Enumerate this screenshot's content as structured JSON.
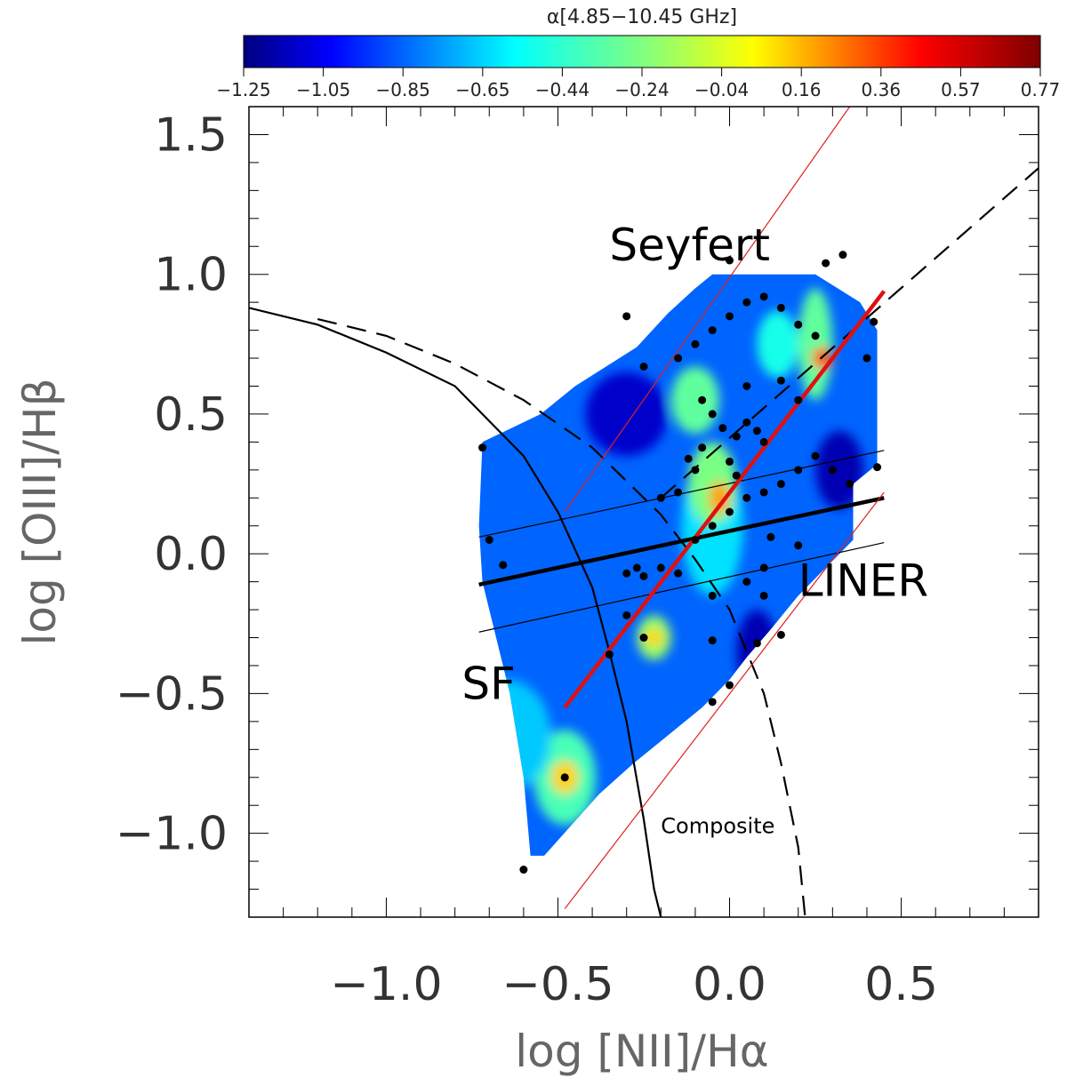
{
  "chart_data": {
    "type": "scatter",
    "xlabel": "log [NII]/Hα",
    "ylabel": "log [OIII]/Hβ",
    "xlim": [
      -1.4,
      0.9
    ],
    "ylim": [
      -1.3,
      1.6
    ],
    "xticks": [
      {
        "value": -1.0,
        "label": "−1.0"
      },
      {
        "value": -0.5,
        "label": "−0.5"
      },
      {
        "value": 0.0,
        "label": "0.0"
      },
      {
        "value": 0.5,
        "label": "0.5"
      }
    ],
    "yticks": [
      {
        "value": 1.5,
        "label": "1.5"
      },
      {
        "value": 1.0,
        "label": "1.0"
      },
      {
        "value": 0.5,
        "label": "0.5"
      },
      {
        "value": 0.0,
        "label": "0.0"
      },
      {
        "value": -0.5,
        "label": "−0.5"
      },
      {
        "value": -1.0,
        "label": "−1.0"
      }
    ],
    "colorbar": {
      "title": "α[4.85−10.45 GHz]",
      "min": -1.25,
      "max": 0.77,
      "ticks": [
        "−1.25",
        "−1.05",
        "−0.85",
        "−0.65",
        "−0.44",
        "−0.24",
        "−0.04",
        "0.16",
        "0.36",
        "0.57",
        "0.77"
      ]
    },
    "region_labels": [
      {
        "text": "Seyfert",
        "x": -0.35,
        "y": 1.05
      },
      {
        "text": "LINER",
        "x": 0.2,
        "y": -0.15
      },
      {
        "text": "SF",
        "x": -0.78,
        "y": -0.52
      },
      {
        "text": "Composite",
        "x": -0.2,
        "y": -1.0
      }
    ],
    "contour_region": [
      [
        -0.72,
        0.4
      ],
      [
        -0.55,
        0.5
      ],
      [
        -0.45,
        0.6
      ],
      [
        -0.27,
        0.74
      ],
      [
        -0.18,
        0.86
      ],
      [
        -0.1,
        0.95
      ],
      [
        -0.05,
        1.0
      ],
      [
        0.25,
        1.0
      ],
      [
        0.38,
        0.9
      ],
      [
        0.43,
        0.8
      ],
      [
        0.43,
        0.32
      ],
      [
        0.36,
        0.25
      ],
      [
        0.36,
        0.05
      ],
      [
        0.28,
        -0.05
      ],
      [
        0.2,
        -0.15
      ],
      [
        0.12,
        -0.27
      ],
      [
        0.05,
        -0.37
      ],
      [
        0.0,
        -0.45
      ],
      [
        -0.08,
        -0.55
      ],
      [
        -0.18,
        -0.65
      ],
      [
        -0.28,
        -0.75
      ],
      [
        -0.38,
        -0.86
      ],
      [
        -0.46,
        -0.97
      ],
      [
        -0.54,
        -1.08
      ],
      [
        -0.58,
        -1.08
      ],
      [
        -0.6,
        -0.8
      ],
      [
        -0.64,
        -0.5
      ],
      [
        -0.68,
        -0.3
      ],
      [
        -0.72,
        -0.1
      ],
      [
        -0.73,
        0.1
      ]
    ],
    "contour_blobs": [
      {
        "center": [
          -0.48,
          -0.8
        ],
        "r": [
          0.09,
          0.17
        ],
        "value": -0.35
      },
      {
        "center": [
          -0.48,
          -0.8
        ],
        "r": [
          0.04,
          0.06
        ],
        "value": 0.1
      },
      {
        "center": [
          -0.65,
          -0.65
        ],
        "r": [
          0.13,
          0.2
        ],
        "value": -0.6
      },
      {
        "center": [
          -0.22,
          -0.3
        ],
        "r": [
          0.05,
          0.08
        ],
        "value": -0.2
      },
      {
        "center": [
          -0.22,
          -0.3
        ],
        "r": [
          0.03,
          0.03
        ],
        "value": 0.1
      },
      {
        "center": [
          -0.05,
          0.1
        ],
        "r": [
          0.09,
          0.25
        ],
        "value": -0.55
      },
      {
        "center": [
          -0.05,
          0.25
        ],
        "r": [
          0.07,
          0.15
        ],
        "value": -0.25
      },
      {
        "center": [
          -0.03,
          0.2
        ],
        "r": [
          0.03,
          0.06
        ],
        "value": 0.2
      },
      {
        "center": [
          -0.1,
          0.55
        ],
        "r": [
          0.07,
          0.12
        ],
        "value": -0.3
      },
      {
        "center": [
          0.25,
          0.75
        ],
        "r": [
          0.05,
          0.2
        ],
        "value": -0.3
      },
      {
        "center": [
          0.27,
          0.7
        ],
        "r": [
          0.03,
          0.04
        ],
        "value": 0.35
      },
      {
        "center": [
          0.14,
          0.75
        ],
        "r": [
          0.06,
          0.12
        ],
        "value": -0.45
      },
      {
        "center": [
          -0.3,
          0.5
        ],
        "r": [
          0.12,
          0.15
        ],
        "value": -1.1
      },
      {
        "center": [
          0.32,
          0.3
        ],
        "r": [
          0.07,
          0.14
        ],
        "value": -1.15
      },
      {
        "center": [
          0.08,
          -0.35
        ],
        "r": [
          0.06,
          0.15
        ],
        "value": -1.15
      }
    ],
    "points": [
      [
        -0.72,
        0.38
      ],
      [
        -0.7,
        0.05
      ],
      [
        -0.66,
        -0.04
      ],
      [
        -0.6,
        -1.13
      ],
      [
        -0.48,
        -0.8
      ],
      [
        -0.3,
        0.85
      ],
      [
        -0.25,
        0.67
      ],
      [
        -0.27,
        -0.05
      ],
      [
        -0.3,
        -0.07
      ],
      [
        -0.25,
        -0.08
      ],
      [
        -0.2,
        -0.05
      ],
      [
        -0.15,
        -0.07
      ],
      [
        -0.12,
        0.34
      ],
      [
        -0.08,
        0.55
      ],
      [
        -0.05,
        0.5
      ],
      [
        -0.02,
        0.45
      ],
      [
        0.02,
        0.42
      ],
      [
        0.05,
        0.47
      ],
      [
        0.08,
        0.44
      ],
      [
        0.1,
        0.4
      ],
      [
        0.0,
        0.33
      ],
      [
        -0.1,
        0.05
      ],
      [
        -0.05,
        0.1
      ],
      [
        0.0,
        0.15
      ],
      [
        0.05,
        0.2
      ],
      [
        0.1,
        0.22
      ],
      [
        0.15,
        0.25
      ],
      [
        0.2,
        0.3
      ],
      [
        0.25,
        0.35
      ],
      [
        0.3,
        0.3
      ],
      [
        0.35,
        0.25
      ],
      [
        -0.15,
        0.7
      ],
      [
        -0.1,
        0.75
      ],
      [
        -0.05,
        0.8
      ],
      [
        0.0,
        0.85
      ],
      [
        0.05,
        0.9
      ],
      [
        0.1,
        0.92
      ],
      [
        0.15,
        0.88
      ],
      [
        0.2,
        0.82
      ],
      [
        0.25,
        0.78
      ],
      [
        0.28,
        1.04
      ],
      [
        0.33,
        1.07
      ],
      [
        0.0,
        1.05
      ],
      [
        0.42,
        0.83
      ],
      [
        0.43,
        0.31
      ],
      [
        0.4,
        0.7
      ],
      [
        -0.2,
        0.2
      ],
      [
        -0.15,
        0.22
      ],
      [
        -0.1,
        0.3
      ],
      [
        0.12,
        0.06
      ],
      [
        0.2,
        0.03
      ],
      [
        0.1,
        -0.05
      ],
      [
        0.05,
        -0.1
      ],
      [
        -0.05,
        -0.15
      ],
      [
        -0.25,
        -0.3
      ],
      [
        -0.3,
        -0.22
      ],
      [
        -0.35,
        -0.36
      ],
      [
        -0.05,
        -0.31
      ],
      [
        0.0,
        -0.47
      ],
      [
        0.08,
        -0.32
      ],
      [
        0.15,
        -0.29
      ],
      [
        -0.05,
        -0.53
      ],
      [
        0.1,
        -0.15
      ],
      [
        0.05,
        0.6
      ],
      [
        0.15,
        0.62
      ],
      [
        0.2,
        0.55
      ],
      [
        -0.08,
        0.38
      ],
      [
        0.02,
        0.28
      ]
    ],
    "curves": {
      "kauffmann": {
        "style": "solid",
        "x": [
          -1.4,
          -1.2,
          -1.0,
          -0.8,
          -0.6,
          -0.5,
          -0.4,
          -0.35,
          -0.3,
          -0.25,
          -0.22,
          -0.2
        ],
        "y": [
          0.88,
          0.82,
          0.72,
          0.6,
          0.35,
          0.15,
          -0.12,
          -0.35,
          -0.6,
          -0.95,
          -1.2,
          -1.3
        ]
      },
      "kewley": {
        "style": "dashed",
        "x": [
          -1.2,
          -1.0,
          -0.8,
          -0.6,
          -0.4,
          -0.2,
          -0.1,
          0.0,
          0.1,
          0.15,
          0.2,
          0.22
        ],
        "y": [
          0.84,
          0.78,
          0.68,
          0.55,
          0.38,
          0.14,
          -0.02,
          -0.2,
          -0.5,
          -0.75,
          -1.05,
          -1.3
        ]
      },
      "seyfert_liner": {
        "style": "dashed",
        "x": [
          -0.2,
          0.9
        ],
        "y": [
          0.2,
          1.38
        ]
      },
      "fit_thick": {
        "style": "thick",
        "x": [
          -0.73,
          0.45
        ],
        "y": [
          -0.11,
          0.2
        ]
      },
      "fit_thin_upper": {
        "style": "thin",
        "x": [
          -0.73,
          0.45
        ],
        "y": [
          0.06,
          0.37
        ]
      },
      "fit_thin_lower": {
        "style": "thin",
        "x": [
          -0.73,
          0.45
        ],
        "y": [
          -0.28,
          0.04
        ]
      },
      "red_fit": {
        "style": "red-thick",
        "x": [
          -0.48,
          0.45
        ],
        "y": [
          -0.55,
          0.94
        ]
      },
      "red_upper": {
        "style": "red-thin",
        "x": [
          -0.48,
          0.35
        ],
        "y": [
          0.15,
          1.6
        ]
      },
      "red_lower": {
        "style": "red-thin",
        "x": [
          -0.48,
          0.45
        ],
        "y": [
          -1.27,
          0.22
        ]
      }
    }
  }
}
